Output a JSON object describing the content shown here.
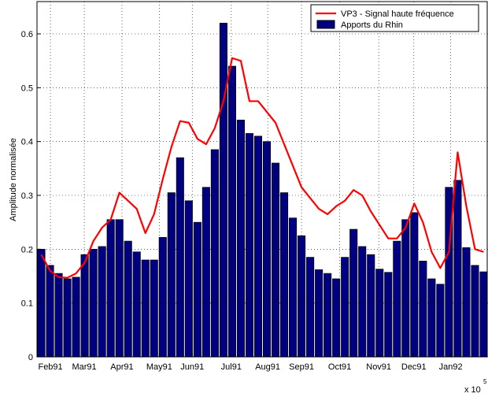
{
  "chart_data": {
    "type": "bar-line",
    "ylabel": "Amplitude normalisée",
    "axis_multiplier": "x 10",
    "axis_multiplier_exponent": "5",
    "x": [
      1,
      2,
      3,
      4,
      5,
      6,
      7,
      8,
      9,
      10,
      11,
      12,
      13,
      14,
      15,
      16,
      17,
      18,
      19,
      20,
      21,
      22,
      23,
      24,
      25,
      26,
      27,
      28,
      29,
      30,
      31,
      32,
      33,
      34,
      35,
      36,
      37,
      38,
      39,
      40,
      41,
      42,
      43,
      44,
      45,
      46,
      47,
      48,
      49,
      50,
      51,
      52
    ],
    "series": [
      {
        "name": "VP3 - Signal haute fréquence",
        "kind": "line",
        "color": "#ff0000",
        "values": [
          0.19,
          0.16,
          0.148,
          0.147,
          0.155,
          0.175,
          0.215,
          0.24,
          0.255,
          0.305,
          0.29,
          0.275,
          0.23,
          0.265,
          0.33,
          0.39,
          0.438,
          0.435,
          0.405,
          0.395,
          0.425,
          0.475,
          0.555,
          0.55,
          0.475,
          0.475,
          0.455,
          0.435,
          0.395,
          0.355,
          0.315,
          0.295,
          0.275,
          0.265,
          0.28,
          0.29,
          0.31,
          0.3,
          0.27,
          0.245,
          0.22,
          0.22,
          0.24,
          0.285,
          0.25,
          0.195,
          0.165,
          0.195,
          0.38,
          0.28,
          0.2,
          0.195
        ]
      },
      {
        "name": "Apports du Rhin",
        "kind": "bar",
        "color": "#000080",
        "values": [
          0.2,
          0.17,
          0.155,
          0.145,
          0.148,
          0.19,
          0.2,
          0.205,
          0.255,
          0.255,
          0.215,
          0.195,
          0.18,
          0.18,
          0.222,
          0.305,
          0.37,
          0.29,
          0.25,
          0.315,
          0.385,
          0.62,
          0.54,
          0.44,
          0.415,
          0.41,
          0.4,
          0.36,
          0.305,
          0.258,
          0.225,
          0.185,
          0.162,
          0.155,
          0.145,
          0.185,
          0.237,
          0.205,
          0.19,
          0.163,
          0.157,
          0.215,
          0.255,
          0.268,
          0.178,
          0.145,
          0.135,
          0.315,
          0.328,
          0.203,
          0.17,
          0.158
        ]
      }
    ],
    "xlim": [
      0.5,
      52.5
    ],
    "xticks": [
      {
        "value": 2.05,
        "label": "Feb91"
      },
      {
        "value": 5.95,
        "label": "Mar91"
      },
      {
        "value": 10.3,
        "label": "Apr91"
      },
      {
        "value": 14.6,
        "label": "May91"
      },
      {
        "value": 18.4,
        "label": "Jun91"
      },
      {
        "value": 22.9,
        "label": "Jul91"
      },
      {
        "value": 27.1,
        "label": "Aug91"
      },
      {
        "value": 31.0,
        "label": "Sep91"
      },
      {
        "value": 35.4,
        "label": "Oct91"
      },
      {
        "value": 39.9,
        "label": "Nov91"
      },
      {
        "value": 43.95,
        "label": "Dec91"
      },
      {
        "value": 48.2,
        "label": "Jan92"
      }
    ],
    "ylim": [
      0,
      0.66
    ],
    "yticks": [
      0,
      0.1,
      0.2,
      0.3,
      0.4,
      0.5,
      0.6
    ],
    "grid": true,
    "legend": "top-right"
  }
}
